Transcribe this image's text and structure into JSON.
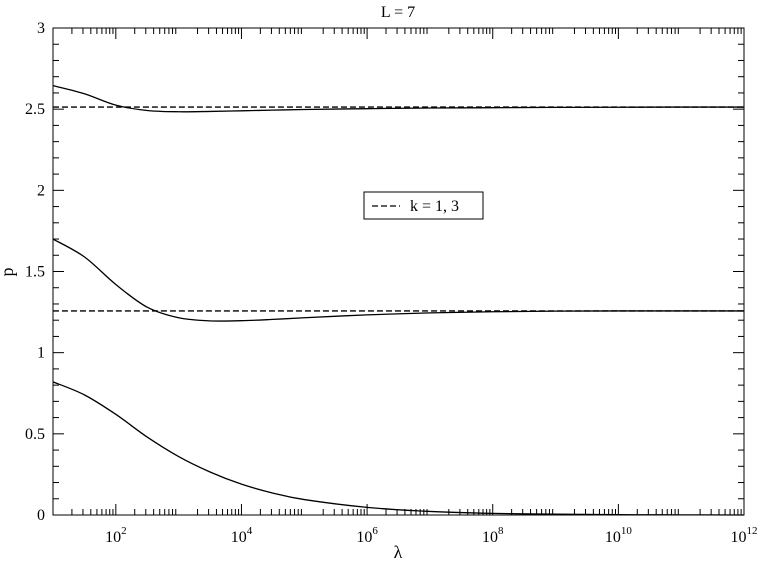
{
  "chart_data": {
    "type": "line",
    "title": "L = 7",
    "xlabel": "λ",
    "ylabel": "p",
    "xscale": "log",
    "xlim": [
      10,
      1000000000000.0
    ],
    "ylim": [
      0,
      3
    ],
    "grid": false,
    "legend_placement": "center-right",
    "x_major_ticks": [
      {
        "value": 100,
        "base": "10",
        "exp": "2"
      },
      {
        "value": 10000,
        "base": "10",
        "exp": "4"
      },
      {
        "value": 1000000,
        "base": "10",
        "exp": "6"
      },
      {
        "value": 100000000,
        "base": "10",
        "exp": "8"
      },
      {
        "value": 10000000000,
        "base": "10",
        "exp": "10"
      },
      {
        "value": 1000000000000,
        "base": "10",
        "exp": "12"
      }
    ],
    "y_ticks": [
      {
        "value": 0,
        "label": "0"
      },
      {
        "value": 0.5,
        "label": "0.5"
      },
      {
        "value": 1,
        "label": "1"
      },
      {
        "value": 1.5,
        "label": "1.5"
      },
      {
        "value": 2,
        "label": "2"
      },
      {
        "value": 2.5,
        "label": "2.5"
      },
      {
        "value": 3,
        "label": "3"
      }
    ],
    "series": [
      {
        "style": "solid",
        "x": [
          10,
          31.6,
          100,
          316,
          1000,
          3162,
          10000,
          31623,
          100000.0,
          1000000.0,
          10000000.0,
          100000000.0,
          1000000000.0,
          10000000000.0,
          100000000000.0,
          1000000000000.0
        ],
        "y": [
          2.645,
          2.595,
          2.525,
          2.492,
          2.484,
          2.486,
          2.49,
          2.494,
          2.498,
          2.503,
          2.507,
          2.509,
          2.511,
          2.512,
          2.513,
          2.513
        ]
      },
      {
        "style": "solid",
        "x": [
          10,
          31.6,
          100,
          316,
          1000,
          3162,
          10000,
          31623,
          100000.0,
          1000000.0,
          10000000.0,
          100000000.0,
          1000000000.0,
          10000000000.0,
          100000000000.0,
          1000000000000.0
        ],
        "y": [
          1.7,
          1.59,
          1.42,
          1.28,
          1.215,
          1.196,
          1.197,
          1.205,
          1.215,
          1.233,
          1.245,
          1.252,
          1.256,
          1.257,
          1.257,
          1.257
        ]
      },
      {
        "style": "solid",
        "x": [
          10,
          31.6,
          100,
          316,
          1000,
          3162,
          10000,
          31623,
          100000.0,
          1000000.0,
          10000000.0,
          100000000.0,
          1000000000.0,
          10000000000.0,
          100000000000.0,
          1000000000000.0
        ],
        "y": [
          0.82,
          0.74,
          0.62,
          0.48,
          0.36,
          0.265,
          0.19,
          0.135,
          0.095,
          0.047,
          0.022,
          0.01,
          0.005,
          0.002,
          0.001,
          0.0
        ]
      },
      {
        "name": "k = 1, 3",
        "style": "dashed",
        "x": [
          10,
          1000000000000.0
        ],
        "y": [
          2.513,
          2.513
        ]
      },
      {
        "style": "dashed",
        "x": [
          10,
          1000000000000.0
        ],
        "y": [
          1.257,
          1.257
        ]
      }
    ],
    "legend": [
      {
        "label": "k = 1, 3",
        "style": "dashed"
      }
    ]
  }
}
